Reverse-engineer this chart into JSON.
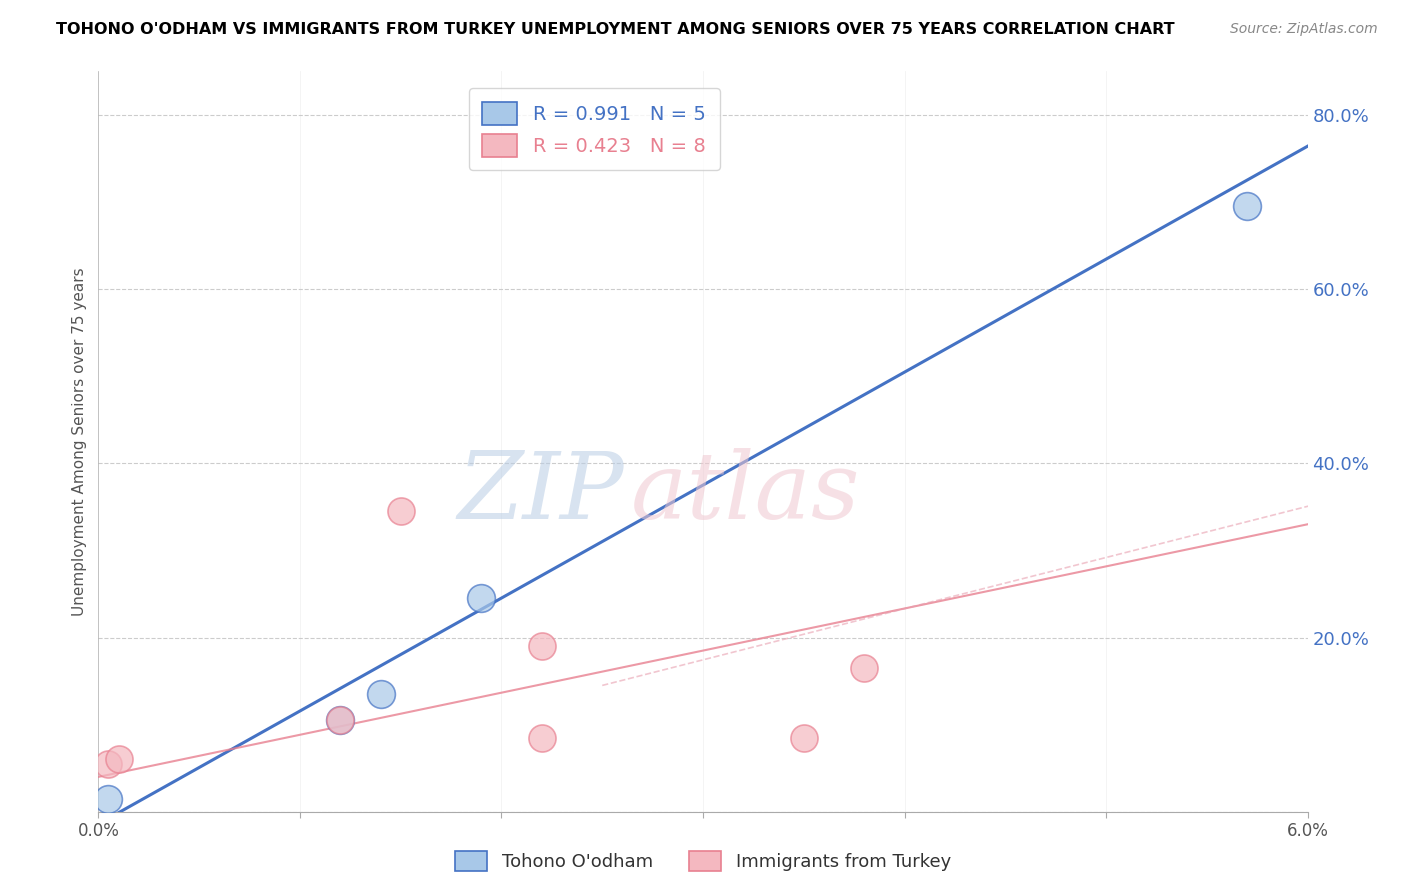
{
  "title": "TOHONO O'ODHAM VS IMMIGRANTS FROM TURKEY UNEMPLOYMENT AMONG SENIORS OVER 75 YEARS CORRELATION CHART",
  "source": "Source: ZipAtlas.com",
  "ylabel": "Unemployment Among Seniors over 75 years",
  "xlim": [
    0.0,
    0.06
  ],
  "ylim": [
    0.0,
    0.85
  ],
  "xticks": [
    0.0,
    0.01,
    0.02,
    0.03,
    0.04,
    0.05,
    0.06
  ],
  "yticks": [
    0.0,
    0.2,
    0.4,
    0.6,
    0.8
  ],
  "blue_points_x": [
    0.0005,
    0.012,
    0.014,
    0.019,
    0.057
  ],
  "blue_points_y": [
    0.015,
    0.105,
    0.135,
    0.245,
    0.695
  ],
  "pink_points_x": [
    0.0005,
    0.001,
    0.012,
    0.015,
    0.022,
    0.022,
    0.035,
    0.038
  ],
  "pink_points_y": [
    0.055,
    0.06,
    0.105,
    0.345,
    0.19,
    0.085,
    0.085,
    0.165
  ],
  "blue_line_x": [
    -0.002,
    0.062
  ],
  "blue_line_y": [
    -0.04,
    0.79
  ],
  "pink_line_x": [
    0.0,
    0.06
  ],
  "pink_line_y": [
    0.04,
    0.33
  ],
  "blue_R": "0.991",
  "blue_N": "5",
  "pink_R": "0.423",
  "pink_N": "8",
  "blue_color": "#a8c8e8",
  "blue_line_color": "#4472c4",
  "pink_color": "#f4b8c0",
  "pink_line_color": "#e88090",
  "pink_dash_color": "#e8a0b0",
  "watermark_zip": "ZIP",
  "watermark_atlas": "atlas",
  "legend_label_blue": "Tohono O'odham",
  "legend_label_pink": "Immigrants from Turkey",
  "background_color": "#ffffff",
  "grid_color": "#cccccc",
  "axis_label_color": "#4472c4",
  "title_color": "#000000"
}
